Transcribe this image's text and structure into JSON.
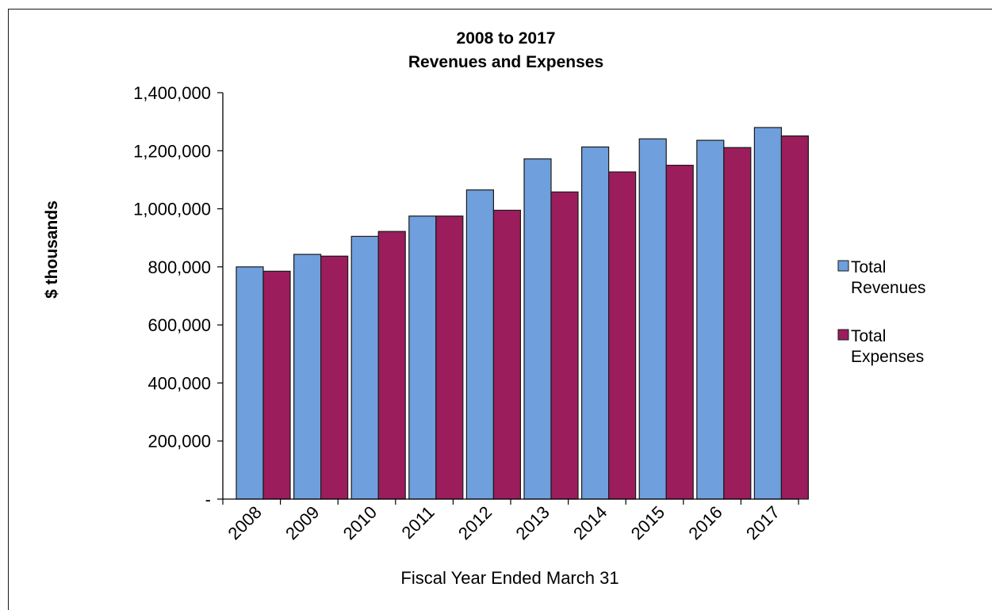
{
  "chart_data": {
    "type": "bar",
    "title": [
      "2008 to 2017",
      "Revenues and Expenses"
    ],
    "xlabel": "Fiscal Year Ended March 31",
    "ylabel": "$ thousands",
    "categories": [
      "2008",
      "2009",
      "2010",
      "2011",
      "2012",
      "2013",
      "2014",
      "2015",
      "2016",
      "2017"
    ],
    "yticks": [
      "-",
      "200,000",
      "400,000",
      "600,000",
      "800,000",
      "1,000,000",
      "1,200,000",
      "1,400,000"
    ],
    "ylim": [
      0,
      1400000
    ],
    "grid": false,
    "legend_position": "right",
    "series": [
      {
        "name": [
          "Total",
          "Revenues"
        ],
        "color": "#6f9fdc",
        "values": [
          800000,
          843000,
          905000,
          975000,
          1065000,
          1172000,
          1213000,
          1241000,
          1236000,
          1280000
        ]
      },
      {
        "name": [
          "Total",
          "Expenses"
        ],
        "color": "#9b1d5c",
        "values": [
          785000,
          837000,
          922000,
          975000,
          995000,
          1058000,
          1127000,
          1150000,
          1211000,
          1251000
        ]
      }
    ]
  }
}
